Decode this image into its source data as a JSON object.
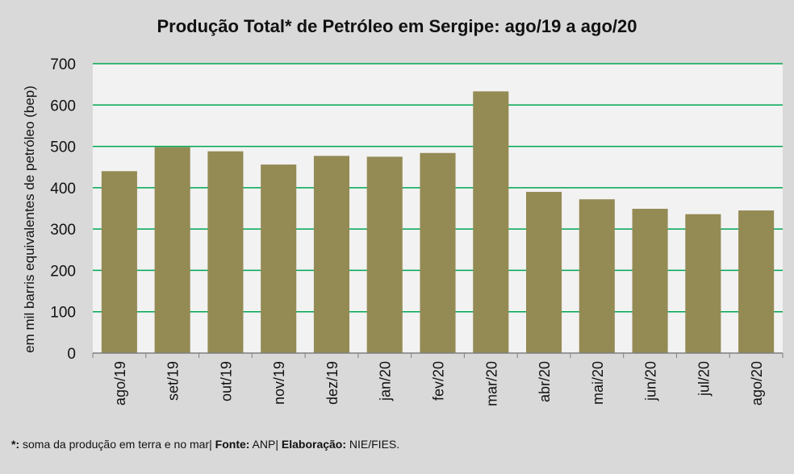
{
  "chart_data": {
    "type": "bar",
    "title": "Produção Total* de Petróleo em Sergipe:  ago/19 a ago/20",
    "xlabel": "",
    "ylabel": "em mil barris equivalentes de petróleo (bep)",
    "ylim": [
      0,
      700
    ],
    "yticks": [
      0,
      100,
      200,
      300,
      400,
      500,
      600,
      700
    ],
    "grid": true,
    "categories": [
      "ago/19",
      "set/19",
      "out/19",
      "nov/19",
      "dez/19",
      "jan/20",
      "fev/20",
      "mar/20",
      "abr/20",
      "mai/20",
      "jun/20",
      "jul/20",
      "ago/20"
    ],
    "values": [
      440,
      498,
      488,
      456,
      477,
      475,
      484,
      633,
      390,
      372,
      349,
      336,
      345
    ],
    "colors": {
      "bar": "#948a54",
      "grid": "#00a651",
      "plot_background": "#f2f2f2",
      "page_background": "#d9d9d9"
    }
  },
  "footnote": {
    "marker": "*:",
    "text1": " soma da produção em terra e no mar| ",
    "fonte_label": "Fonte:",
    "fonte_value": " ANP| ",
    "elaboracao_label": "Elaboração:",
    "elaboracao_value": " NIE/FIES."
  }
}
